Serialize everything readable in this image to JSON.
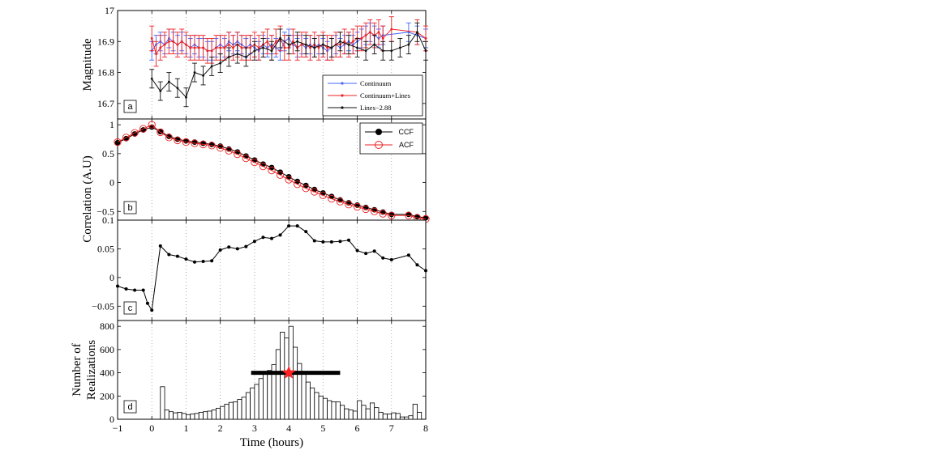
{
  "chart_data": [
    {
      "panel": "a",
      "type": "line",
      "ylabel": "Magnitude",
      "xlim": [
        -1,
        8
      ],
      "ylim": [
        16.65,
        17.0
      ],
      "yticks": [
        "16.7",
        "16.8",
        "16.9",
        "17"
      ],
      "legend_position": "bottom-right",
      "series": [
        {
          "name": "Continuum",
          "color": "#4466ff",
          "x": [
            0.0,
            0.125,
            0.25,
            0.375,
            0.5,
            0.625,
            0.75,
            0.875,
            1.0,
            1.125,
            1.25,
            1.375,
            1.5,
            1.625,
            1.75,
            1.875,
            2.0,
            2.125,
            2.25,
            2.375,
            2.5,
            2.625,
            2.75,
            2.875,
            3.0,
            3.125,
            3.25,
            3.375,
            3.5,
            3.625,
            3.75,
            3.875,
            4.0,
            4.125,
            4.25,
            4.375,
            4.5,
            4.625,
            4.75,
            4.875,
            5.0,
            5.125,
            5.25,
            5.375,
            5.5,
            5.625,
            5.75,
            5.875,
            6.0,
            6.125,
            6.25,
            6.375,
            6.5,
            6.625,
            6.75,
            7.5,
            7.75,
            8.0
          ],
          "y": [
            16.87,
            16.89,
            16.9,
            16.89,
            16.91,
            16.9,
            16.89,
            16.9,
            16.89,
            16.88,
            16.89,
            16.88,
            16.88,
            16.87,
            16.87,
            16.88,
            16.89,
            16.88,
            16.9,
            16.89,
            16.9,
            16.89,
            16.88,
            16.89,
            16.88,
            16.87,
            16.89,
            16.88,
            16.89,
            16.88,
            16.87,
            16.9,
            16.91,
            16.89,
            16.88,
            16.89,
            16.88,
            16.89,
            16.88,
            16.89,
            16.88,
            16.87,
            16.88,
            16.89,
            16.88,
            16.89,
            16.9,
            16.89,
            16.9,
            16.91,
            16.92,
            16.93,
            16.92,
            16.91,
            16.92,
            16.93,
            16.92,
            16.91
          ],
          "error": 0.03
        },
        {
          "name": "Continuum+Lines",
          "color": "#ee2222",
          "x": [
            0.0,
            0.125,
            0.25,
            0.375,
            0.5,
            0.625,
            0.75,
            0.875,
            1.0,
            1.125,
            1.25,
            1.375,
            1.5,
            1.625,
            1.75,
            1.875,
            2.0,
            2.125,
            2.25,
            2.375,
            2.5,
            2.625,
            2.75,
            2.875,
            3.0,
            3.125,
            3.25,
            3.375,
            3.5,
            3.625,
            3.75,
            3.875,
            4.0,
            4.125,
            4.25,
            4.375,
            4.5,
            4.625,
            4.75,
            4.875,
            5.0,
            5.125,
            5.25,
            5.375,
            5.5,
            5.625,
            5.75,
            5.875,
            6.0,
            6.125,
            6.25,
            6.375,
            6.5,
            6.625,
            6.75,
            7.0,
            7.75,
            8.0
          ],
          "y": [
            16.91,
            16.86,
            16.88,
            16.89,
            16.9,
            16.9,
            16.89,
            16.9,
            16.89,
            16.88,
            16.88,
            16.88,
            16.88,
            16.87,
            16.87,
            16.88,
            16.88,
            16.88,
            16.89,
            16.88,
            16.89,
            16.88,
            16.88,
            16.88,
            16.89,
            16.88,
            16.89,
            16.9,
            16.88,
            16.9,
            16.91,
            16.88,
            16.88,
            16.9,
            16.88,
            16.89,
            16.89,
            16.88,
            16.89,
            16.88,
            16.89,
            16.88,
            16.88,
            16.89,
            16.89,
            16.9,
            16.89,
            16.9,
            16.91,
            16.91,
            16.92,
            16.93,
            16.92,
            16.93,
            16.91,
            16.94,
            16.93,
            16.91
          ],
          "error": 0.04
        },
        {
          "name": "Lines−2.88",
          "color": "#111111",
          "x": [
            0.0,
            0.25,
            0.5,
            0.75,
            1.0,
            1.25,
            1.5,
            1.75,
            2.0,
            2.25,
            2.5,
            2.75,
            3.0,
            3.25,
            3.5,
            3.75,
            4.0,
            4.25,
            4.5,
            4.75,
            5.0,
            5.25,
            5.5,
            5.75,
            6.0,
            6.25,
            6.5,
            6.75,
            7.0,
            7.25,
            7.5,
            7.75,
            8.0
          ],
          "y": [
            16.78,
            16.74,
            16.77,
            16.75,
            16.72,
            16.8,
            16.79,
            16.82,
            16.83,
            16.85,
            16.86,
            16.85,
            16.87,
            16.88,
            16.87,
            16.91,
            16.89,
            16.9,
            16.89,
            16.88,
            16.89,
            16.88,
            16.9,
            16.89,
            16.88,
            16.87,
            16.89,
            16.87,
            16.87,
            16.88,
            16.89,
            16.93,
            16.87
          ],
          "error": 0.03
        }
      ]
    },
    {
      "panel": "b",
      "type": "line",
      "ylabel": "Correlation (A.U)",
      "xlim": [
        -1,
        8
      ],
      "ylim": [
        -0.65,
        1.1
      ],
      "yticks": [
        "-0.5",
        "0",
        "0.5",
        "1"
      ],
      "legend_position": "top-right",
      "series": [
        {
          "name": "CCF",
          "color": "#000000",
          "marker": "filled-circle",
          "x": [
            -1.0,
            -0.75,
            -0.5,
            -0.25,
            0.0,
            0.25,
            0.5,
            0.75,
            1.0,
            1.25,
            1.5,
            1.75,
            2.0,
            2.25,
            2.5,
            2.75,
            3.0,
            3.25,
            3.5,
            3.75,
            4.0,
            4.25,
            4.5,
            4.75,
            5.0,
            5.25,
            5.5,
            5.75,
            6.0,
            6.25,
            6.5,
            6.75,
            7.0,
            7.5,
            7.75,
            8.0
          ],
          "y": [
            0.69,
            0.76,
            0.84,
            0.91,
            0.96,
            0.88,
            0.8,
            0.75,
            0.72,
            0.7,
            0.68,
            0.66,
            0.63,
            0.58,
            0.53,
            0.46,
            0.39,
            0.32,
            0.26,
            0.18,
            0.1,
            0.02,
            -0.05,
            -0.12,
            -0.18,
            -0.24,
            -0.3,
            -0.35,
            -0.39,
            -0.43,
            -0.47,
            -0.51,
            -0.55,
            -0.55,
            -0.59,
            -0.61
          ]
        },
        {
          "name": "ACF",
          "color": "#ee2222",
          "marker": "open-circle",
          "x": [
            -1.0,
            -0.75,
            -0.5,
            -0.25,
            0.0,
            0.25,
            0.5,
            0.75,
            1.0,
            1.25,
            1.5,
            1.75,
            2.0,
            2.25,
            2.5,
            2.75,
            3.0,
            3.25,
            3.5,
            3.75,
            4.0,
            4.25,
            4.5,
            4.75,
            5.0,
            5.25,
            5.5,
            5.75,
            6.0,
            6.25,
            6.5,
            6.75,
            7.0,
            7.5,
            7.75,
            8.0
          ],
          "y": [
            0.7,
            0.78,
            0.86,
            0.93,
            1.0,
            0.87,
            0.78,
            0.73,
            0.7,
            0.68,
            0.66,
            0.64,
            0.6,
            0.55,
            0.49,
            0.42,
            0.35,
            0.28,
            0.21,
            0.13,
            0.05,
            -0.03,
            -0.1,
            -0.16,
            -0.22,
            -0.28,
            -0.33,
            -0.38,
            -0.42,
            -0.46,
            -0.5,
            -0.54,
            -0.57,
            -0.57,
            -0.61,
            -0.63
          ]
        }
      ]
    },
    {
      "panel": "c",
      "type": "line",
      "ylabel": "",
      "xlim": [
        -1,
        8
      ],
      "ylim": [
        -0.075,
        0.1
      ],
      "yticks": [
        "-0.05",
        "0",
        "0.05",
        "0.1"
      ],
      "series": [
        {
          "color": "#000000",
          "x": [
            -1.0,
            -0.75,
            -0.5,
            -0.25,
            -0.125,
            0.0,
            0.25,
            0.5,
            0.75,
            1.0,
            1.25,
            1.5,
            1.75,
            2.0,
            2.25,
            2.5,
            2.75,
            3.0,
            3.25,
            3.5,
            3.75,
            4.0,
            4.25,
            4.5,
            4.75,
            5.0,
            5.25,
            5.5,
            5.75,
            6.0,
            6.25,
            6.5,
            6.75,
            7.0,
            7.5,
            7.75,
            8.0
          ],
          "y": [
            -0.015,
            -0.02,
            -0.022,
            -0.022,
            -0.045,
            -0.057,
            0.055,
            0.04,
            0.037,
            0.032,
            0.027,
            0.028,
            0.029,
            0.048,
            0.053,
            0.05,
            0.054,
            0.063,
            0.07,
            0.068,
            0.074,
            0.09,
            0.09,
            0.08,
            0.064,
            0.062,
            0.062,
            0.063,
            0.065,
            0.047,
            0.042,
            0.046,
            0.034,
            0.031,
            0.039,
            0.022,
            0.012
          ]
        }
      ]
    },
    {
      "panel": "d",
      "type": "bar",
      "ylabel": "Number of Realizations",
      "xlabel": "Time (hours)",
      "xlim": [
        -1,
        8
      ],
      "ylim": [
        0,
        850
      ],
      "xticks": [
        "-1",
        "0",
        "1",
        "2",
        "3",
        "4",
        "5",
        "6",
        "7",
        "8"
      ],
      "yticks": [
        "0",
        "200",
        "400",
        "600",
        "800"
      ],
      "bin_width": 0.125,
      "bin_starts": [
        0.0,
        0.125,
        0.25,
        0.375,
        0.5,
        0.625,
        0.75,
        0.875,
        1.0,
        1.125,
        1.25,
        1.375,
        1.5,
        1.625,
        1.75,
        1.875,
        2.0,
        2.125,
        2.25,
        2.375,
        2.5,
        2.625,
        2.75,
        2.875,
        3.0,
        3.125,
        3.25,
        3.375,
        3.5,
        3.625,
        3.75,
        3.875,
        4.0,
        4.125,
        4.25,
        4.375,
        4.5,
        4.625,
        4.75,
        4.875,
        5.0,
        5.125,
        5.25,
        5.375,
        5.5,
        5.625,
        5.75,
        5.875,
        6.0,
        6.125,
        6.25,
        6.375,
        6.5,
        6.625,
        6.75,
        6.875,
        7.0,
        7.125,
        7.25,
        7.375,
        7.5,
        7.625,
        7.75,
        7.875
      ],
      "values": [
        0,
        0,
        280,
        80,
        65,
        55,
        60,
        50,
        40,
        45,
        50,
        60,
        65,
        70,
        80,
        95,
        110,
        130,
        145,
        150,
        170,
        190,
        230,
        270,
        300,
        350,
        400,
        420,
        470,
        600,
        750,
        700,
        800,
        620,
        480,
        390,
        320,
        270,
        230,
        200,
        180,
        160,
        150,
        150,
        120,
        90,
        80,
        70,
        160,
        120,
        90,
        140,
        100,
        60,
        45,
        45,
        55,
        50,
        20,
        20,
        30,
        130,
        60,
        0
      ],
      "marker_star_x": 4.0,
      "marker_star_y": 400,
      "marker_star_color": "#ff2222",
      "range_bar": [
        2.9,
        5.5
      ],
      "range_bar_y": 400
    }
  ]
}
